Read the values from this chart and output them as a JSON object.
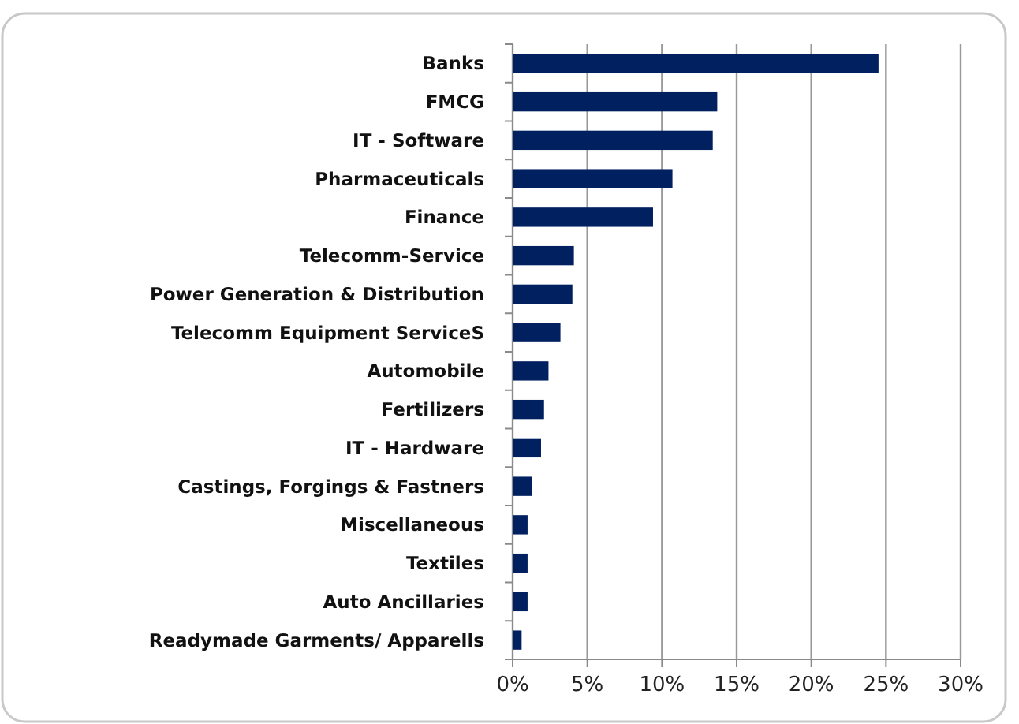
{
  "chart_data": {
    "type": "bar",
    "orientation": "horizontal",
    "categories": [
      "Banks",
      "FMCG",
      "IT - Software",
      "Pharmaceuticals",
      "Finance",
      "Telecomm-Service",
      "Power Generation & Distribution",
      "Telecomm Equipment  ServiceS",
      "Automobile",
      "Fertilizers",
      "IT - Hardware",
      "Castings, Forgings & Fastners",
      "Miscellaneous",
      "Textiles",
      "Auto Ancillaries",
      "Readymade Garments/ Apparells"
    ],
    "values": [
      24.5,
      13.7,
      13.4,
      10.7,
      9.4,
      4.1,
      4.0,
      3.2,
      2.4,
      2.1,
      1.9,
      1.3,
      1.0,
      1.0,
      1.0,
      0.6
    ],
    "color": "#002060",
    "xlim": [
      0,
      30
    ],
    "xticks": [
      {
        "value": 0,
        "label": "0%"
      },
      {
        "value": 5,
        "label": "5%"
      },
      {
        "value": 10,
        "label": "10%"
      },
      {
        "value": 15,
        "label": "15%"
      },
      {
        "value": 20,
        "label": "20%"
      },
      {
        "value": 25,
        "label": "25%"
      },
      {
        "value": 30,
        "label": "30%"
      }
    ],
    "grid": "x"
  }
}
